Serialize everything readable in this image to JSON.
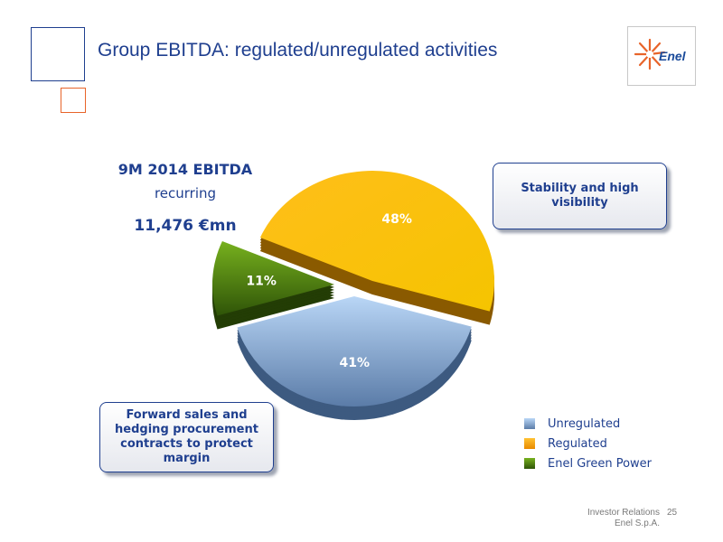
{
  "header": {
    "title": "Group EBITDA: regulated/unregulated activities"
  },
  "logo": {
    "text": "Enel"
  },
  "summary": {
    "heading": "9M 2014 EBITDA",
    "subheading": "recurring",
    "value": "11,476 €mn"
  },
  "callouts": {
    "top": "Stability and high visibility",
    "bottom": "Forward sales and hedging procurement contracts to protect margin"
  },
  "footer": {
    "line1": "Investor Relations",
    "line2": "Enel S.p.A.",
    "page": "25"
  },
  "colors": {
    "text_blue": "#1f3f8f",
    "accent_orange": "#e8642a"
  },
  "chart_data": {
    "type": "pie",
    "slices": [
      {
        "name": "Unregulated",
        "value": 41,
        "label": "41%",
        "color": "#8fb2dc"
      },
      {
        "name": "Regulated",
        "value": 48,
        "label": "48%",
        "color": "#ffaa00"
      },
      {
        "name": "Enel Green Power",
        "value": 11,
        "label": "11%",
        "color": "#4d7a10"
      }
    ],
    "legend_position": "bottom-right"
  }
}
